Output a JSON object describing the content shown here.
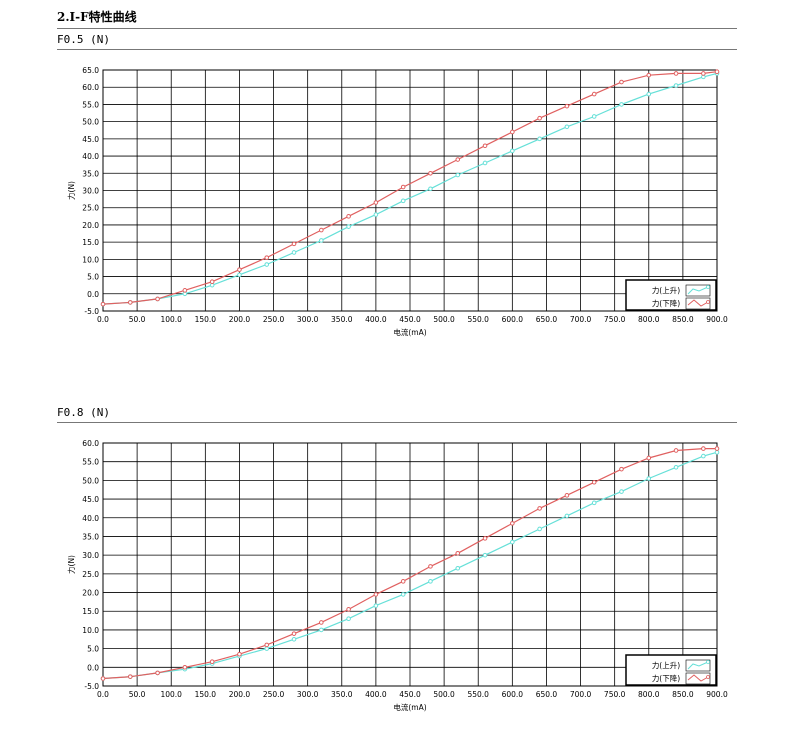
{
  "page": {
    "heading": "2.I-F特性曲线"
  },
  "chart_data": [
    {
      "type": "line",
      "subtitle": "F0.5 (N)",
      "xlabel": "电流(mA)",
      "ylabel": "力(N)",
      "xlim": [
        0,
        900
      ],
      "ylim": [
        -5,
        65
      ],
      "xticks": [
        "0.0",
        "50.0",
        "100.0",
        "150.0",
        "200.0",
        "250.0",
        "300.0",
        "350.0",
        "400.0",
        "450.0",
        "500.0",
        "550.0",
        "600.0",
        "650.0",
        "700.0",
        "750.0",
        "800.0",
        "850.0",
        "900.0"
      ],
      "yticks": [
        "65.0",
        "60.0",
        "55.0",
        "50.0",
        "45.0",
        "40.0",
        "35.0",
        "30.0",
        "25.0",
        "20.0",
        "15.0",
        "10.0",
        "5.0",
        "0.0",
        "-5.0"
      ],
      "grid": true,
      "legend_position": "bottom-right",
      "series": [
        {
          "name": "力(上升)",
          "color": "#66e0d8",
          "x": [
            0,
            40,
            80,
            120,
            160,
            200,
            240,
            280,
            320,
            360,
            400,
            440,
            480,
            520,
            560,
            600,
            640,
            680,
            720,
            760,
            800,
            840,
            880,
            900
          ],
          "y": [
            -3,
            -2.5,
            -1.5,
            0,
            2.5,
            5.5,
            8.5,
            12,
            15.5,
            19.5,
            23,
            27,
            30.5,
            34.5,
            38,
            41.5,
            45,
            48.5,
            51.5,
            55,
            58,
            60.5,
            63,
            64
          ]
        },
        {
          "name": "力(下降)",
          "color": "#e06060",
          "x": [
            0,
            40,
            80,
            120,
            160,
            200,
            240,
            280,
            320,
            360,
            400,
            440,
            480,
            520,
            560,
            600,
            640,
            680,
            720,
            760,
            800,
            840,
            880,
            900
          ],
          "y": [
            -3,
            -2.5,
            -1.5,
            1,
            3.5,
            7,
            10.5,
            14.5,
            18.5,
            22.5,
            26.5,
            31,
            35,
            39,
            43,
            47,
            51,
            54.5,
            58,
            61.5,
            63.5,
            64,
            64,
            64.5
          ]
        }
      ]
    },
    {
      "type": "line",
      "subtitle": "F0.8 (N)",
      "xlabel": "电流(mA)",
      "ylabel": "力(N)",
      "xlim": [
        0,
        900
      ],
      "ylim": [
        -5,
        60
      ],
      "xticks": [
        "0.0",
        "50.0",
        "100.0",
        "150.0",
        "200.0",
        "250.0",
        "300.0",
        "350.0",
        "400.0",
        "450.0",
        "500.0",
        "550.0",
        "600.0",
        "650.0",
        "700.0",
        "750.0",
        "800.0",
        "850.0",
        "900.0"
      ],
      "yticks": [
        "60.0",
        "55.0",
        "50.0",
        "45.0",
        "40.0",
        "35.0",
        "30.0",
        "25.0",
        "20.0",
        "15.0",
        "10.0",
        "5.0",
        "0.0",
        "-5.0"
      ],
      "grid": true,
      "legend_position": "bottom-right",
      "series": [
        {
          "name": "力(上升)",
          "color": "#66e0d8",
          "x": [
            0,
            40,
            80,
            120,
            160,
            200,
            240,
            280,
            320,
            360,
            400,
            440,
            480,
            520,
            560,
            600,
            640,
            680,
            720,
            760,
            800,
            840,
            880,
            900
          ],
          "y": [
            -3,
            -2.5,
            -1.5,
            -0.5,
            1,
            3,
            5,
            7.5,
            10,
            13,
            16.5,
            19.5,
            23,
            26.5,
            30,
            33.5,
            37,
            40.5,
            44,
            47,
            50.5,
            53.5,
            56.5,
            57.5
          ]
        },
        {
          "name": "力(下降)",
          "color": "#e06060",
          "x": [
            0,
            40,
            80,
            120,
            160,
            200,
            240,
            280,
            320,
            360,
            400,
            440,
            480,
            520,
            560,
            600,
            640,
            680,
            720,
            760,
            800,
            840,
            880,
            900
          ],
          "y": [
            -3,
            -2.5,
            -1.5,
            0,
            1.5,
            3.5,
            6,
            9,
            12,
            15.5,
            19.5,
            23,
            27,
            30.5,
            34.5,
            38.5,
            42.5,
            46,
            49.5,
            53,
            56,
            58,
            58.5,
            58.5
          ]
        }
      ]
    }
  ]
}
